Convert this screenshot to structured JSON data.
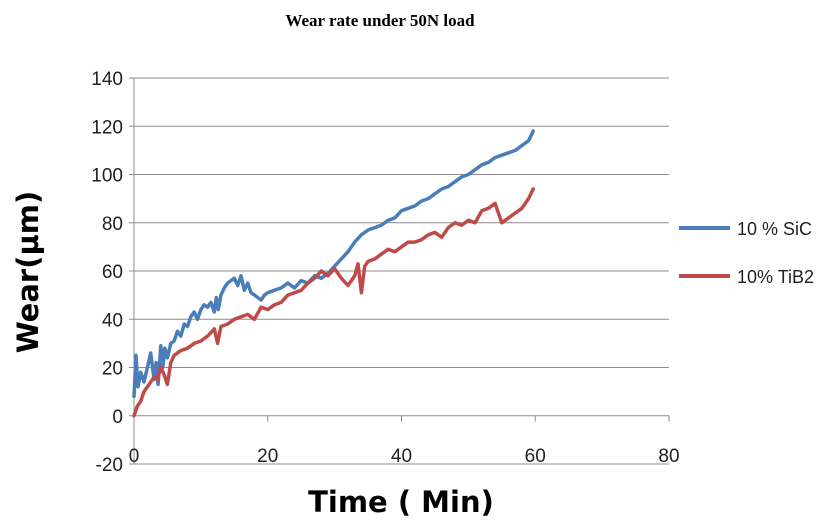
{
  "chart_data": {
    "type": "line",
    "title": "Wear rate under 50N load",
    "xlabel": "Time ( Min)",
    "ylabel": "Wear(µm)",
    "xlim": [
      0,
      80
    ],
    "ylim": [
      -20,
      140
    ],
    "xticks": [
      0,
      20,
      40,
      60,
      80
    ],
    "yticks": [
      -20,
      0,
      20,
      40,
      60,
      80,
      100,
      120,
      140
    ],
    "grid": "horizontal",
    "legend_position": "right",
    "series": [
      {
        "name": "10 % SiC",
        "color": "#4a7ebb",
        "x": [
          0,
          0.3,
          0.6,
          1,
          1.5,
          2,
          2.5,
          3,
          3.3,
          3.6,
          4,
          4.3,
          4.6,
          5,
          5.5,
          6,
          6.5,
          7,
          7.5,
          8,
          8.5,
          9,
          9.5,
          10,
          10.5,
          11,
          11.5,
          12,
          12.3,
          12.6,
          13,
          13.5,
          14,
          14.5,
          15,
          15.5,
          16,
          16.5,
          17,
          17.5,
          18,
          18.5,
          19,
          19.5,
          20,
          21,
          22,
          23,
          24,
          25,
          26,
          27,
          28,
          29,
          30,
          31,
          32,
          33,
          34,
          35,
          36,
          37,
          38,
          39,
          40,
          41,
          42,
          43,
          44,
          45,
          46,
          47,
          48,
          49,
          50,
          51,
          52,
          53,
          54,
          55,
          56,
          57,
          58,
          59,
          59.7
        ],
        "values": [
          8,
          25,
          12,
          18,
          14,
          20,
          26,
          15,
          22,
          13,
          29,
          20,
          28,
          24,
          30,
          31,
          35,
          33,
          38,
          37,
          41,
          43,
          40,
          44,
          46,
          45,
          47,
          43,
          49,
          44,
          50,
          53,
          55,
          56,
          57,
          54,
          58,
          52,
          55,
          51,
          50,
          49,
          48,
          50,
          51,
          52,
          53,
          55,
          53,
          56,
          55,
          58,
          57,
          59,
          62,
          65,
          68,
          72,
          75,
          77,
          78,
          79,
          81,
          82,
          85,
          86,
          87,
          89,
          90,
          92,
          94,
          95,
          97,
          99,
          100,
          102,
          104,
          105,
          107,
          108,
          109,
          110,
          112,
          114,
          118
        ]
      },
      {
        "name": "10% TiB2",
        "color": "#be4b48",
        "x": [
          0,
          0.5,
          1,
          1.5,
          2,
          2.5,
          3,
          3.5,
          4,
          4.5,
          5,
          5.5,
          6,
          7,
          8,
          9,
          10,
          11,
          12,
          12.5,
          13,
          14,
          15,
          16,
          17,
          18,
          19,
          20,
          21,
          22,
          23,
          24,
          25,
          26,
          27,
          28,
          29,
          30,
          31,
          32,
          33,
          33.5,
          34,
          34.5,
          35,
          36,
          37,
          38,
          39,
          40,
          41,
          42,
          43,
          44,
          45,
          46,
          47,
          48,
          49,
          50,
          51,
          52,
          53,
          54,
          55,
          56,
          57,
          58,
          59,
          59.7
        ],
        "values": [
          0,
          4,
          6,
          10,
          12,
          14,
          16,
          15,
          20,
          17,
          13,
          22,
          25,
          27,
          28,
          30,
          31,
          33,
          36,
          30,
          37,
          38,
          40,
          41,
          42,
          40,
          45,
          44,
          46,
          47,
          50,
          51,
          52,
          55,
          57,
          60,
          58,
          61,
          57,
          54,
          58,
          63,
          51,
          62,
          64,
          65,
          67,
          69,
          68,
          70,
          72,
          72,
          73,
          75,
          76,
          74,
          78,
          80,
          79,
          81,
          80,
          85,
          86,
          88,
          80,
          82,
          84,
          86,
          90,
          94
        ]
      }
    ]
  }
}
